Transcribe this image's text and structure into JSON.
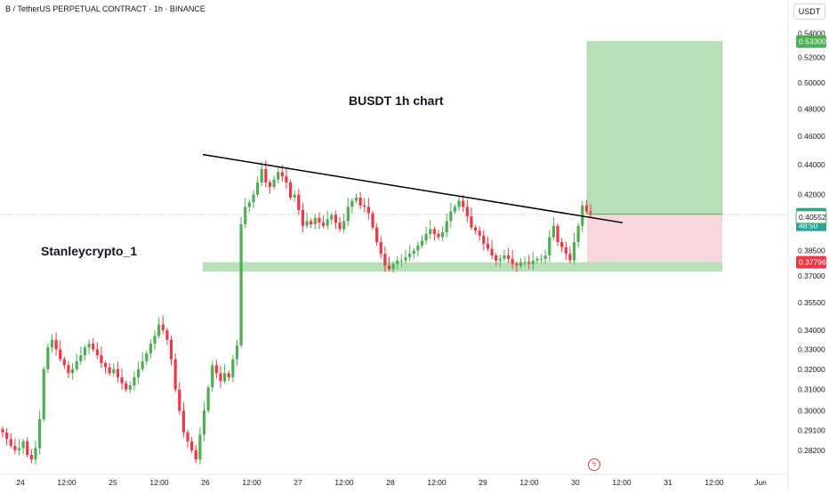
{
  "header": {
    "symbol_title": "B / TetherUS PERPETUAL CONTRACT · 1h · BINANCE",
    "currency": "USDT"
  },
  "annotations": {
    "chart_title": "BUSDT 1h chart",
    "author_label": "Stanleycrypto_1"
  },
  "price_axis": {
    "current_price_label": "0.40737",
    "countdown_label": "48:50",
    "entry_label": "0.40552",
    "target_label": "0.53300",
    "stop_label": "0.37796"
  },
  "colors": {
    "bull": "#26a69a",
    "bear": "#f23645",
    "candle_up": "#4caf50",
    "candle_down": "#f23645",
    "target_fill": "#b9dfb9",
    "stop_fill": "#f7d6dc",
    "support_fill": "#a6d9a6",
    "trendline": "#000000"
  },
  "icons": {
    "bottom_marker": "lightning-icon"
  },
  "chart_data": {
    "type": "candlestick",
    "timeframe": "1h",
    "y_axis": {
      "position": "right",
      "ticks": [
        "0.54000",
        "0.52000",
        "0.50000",
        "0.48000",
        "0.46000",
        "0.44000",
        "0.42000",
        "0.38500",
        "0.37000",
        "0.35500",
        "0.34000",
        "0.33000",
        "0.32000",
        "0.31000",
        "0.30000",
        "0.29100",
        "0.28200"
      ],
      "range": [
        0.272,
        0.547
      ],
      "scale": "log"
    },
    "x_axis": {
      "ticks": [
        "24",
        "12:00",
        "25",
        "12:00",
        "26",
        "12:00",
        "27",
        "12:00",
        "28",
        "12:00",
        "29",
        "12:00",
        "30",
        "12:00",
        "31",
        "12:00",
        "Jun"
      ]
    },
    "candles_close": [
      0.29,
      0.287,
      0.284,
      0.282,
      0.283,
      0.286,
      0.28,
      0.278,
      0.283,
      0.296,
      0.32,
      0.331,
      0.335,
      0.33,
      0.325,
      0.322,
      0.318,
      0.32,
      0.324,
      0.327,
      0.331,
      0.333,
      0.33,
      0.327,
      0.323,
      0.321,
      0.318,
      0.32,
      0.316,
      0.313,
      0.31,
      0.312,
      0.316,
      0.32,
      0.324,
      0.328,
      0.333,
      0.337,
      0.343,
      0.34,
      0.335,
      0.325,
      0.31,
      0.3,
      0.29,
      0.286,
      0.282,
      0.278,
      0.289,
      0.3,
      0.311,
      0.322,
      0.318,
      0.314,
      0.318,
      0.316,
      0.325,
      0.332,
      0.401,
      0.412,
      0.415,
      0.42,
      0.428,
      0.437,
      0.428,
      0.425,
      0.43,
      0.435,
      0.432,
      0.428,
      0.418,
      0.42,
      0.41,
      0.4,
      0.403,
      0.401,
      0.405,
      0.402,
      0.4,
      0.404,
      0.407,
      0.402,
      0.398,
      0.403,
      0.412,
      0.416,
      0.418,
      0.413,
      0.412,
      0.408,
      0.399,
      0.39,
      0.383,
      0.376,
      0.374,
      0.377,
      0.379,
      0.379,
      0.381,
      0.383,
      0.385,
      0.388,
      0.391,
      0.395,
      0.398,
      0.395,
      0.393,
      0.396,
      0.403,
      0.409,
      0.412,
      0.416,
      0.412,
      0.406,
      0.399,
      0.397,
      0.394,
      0.389,
      0.386,
      0.382,
      0.379,
      0.38,
      0.382,
      0.38,
      0.377,
      0.376,
      0.378,
      0.378,
      0.377,
      0.379,
      0.38,
      0.38,
      0.382,
      0.393,
      0.4,
      0.39,
      0.387,
      0.383,
      0.379,
      0.39,
      0.4,
      0.413,
      0.409,
      0.408
    ],
    "target_zone": {
      "from": 0.40737,
      "to": 0.533
    },
    "stop_zone": {
      "from": 0.37796,
      "to": 0.40737
    },
    "support_zone": {
      "from": 0.3725,
      "to": 0.378
    },
    "trendline": {
      "from": 0.447,
      "to": 0.402
    },
    "current_price": 0.40737
  }
}
